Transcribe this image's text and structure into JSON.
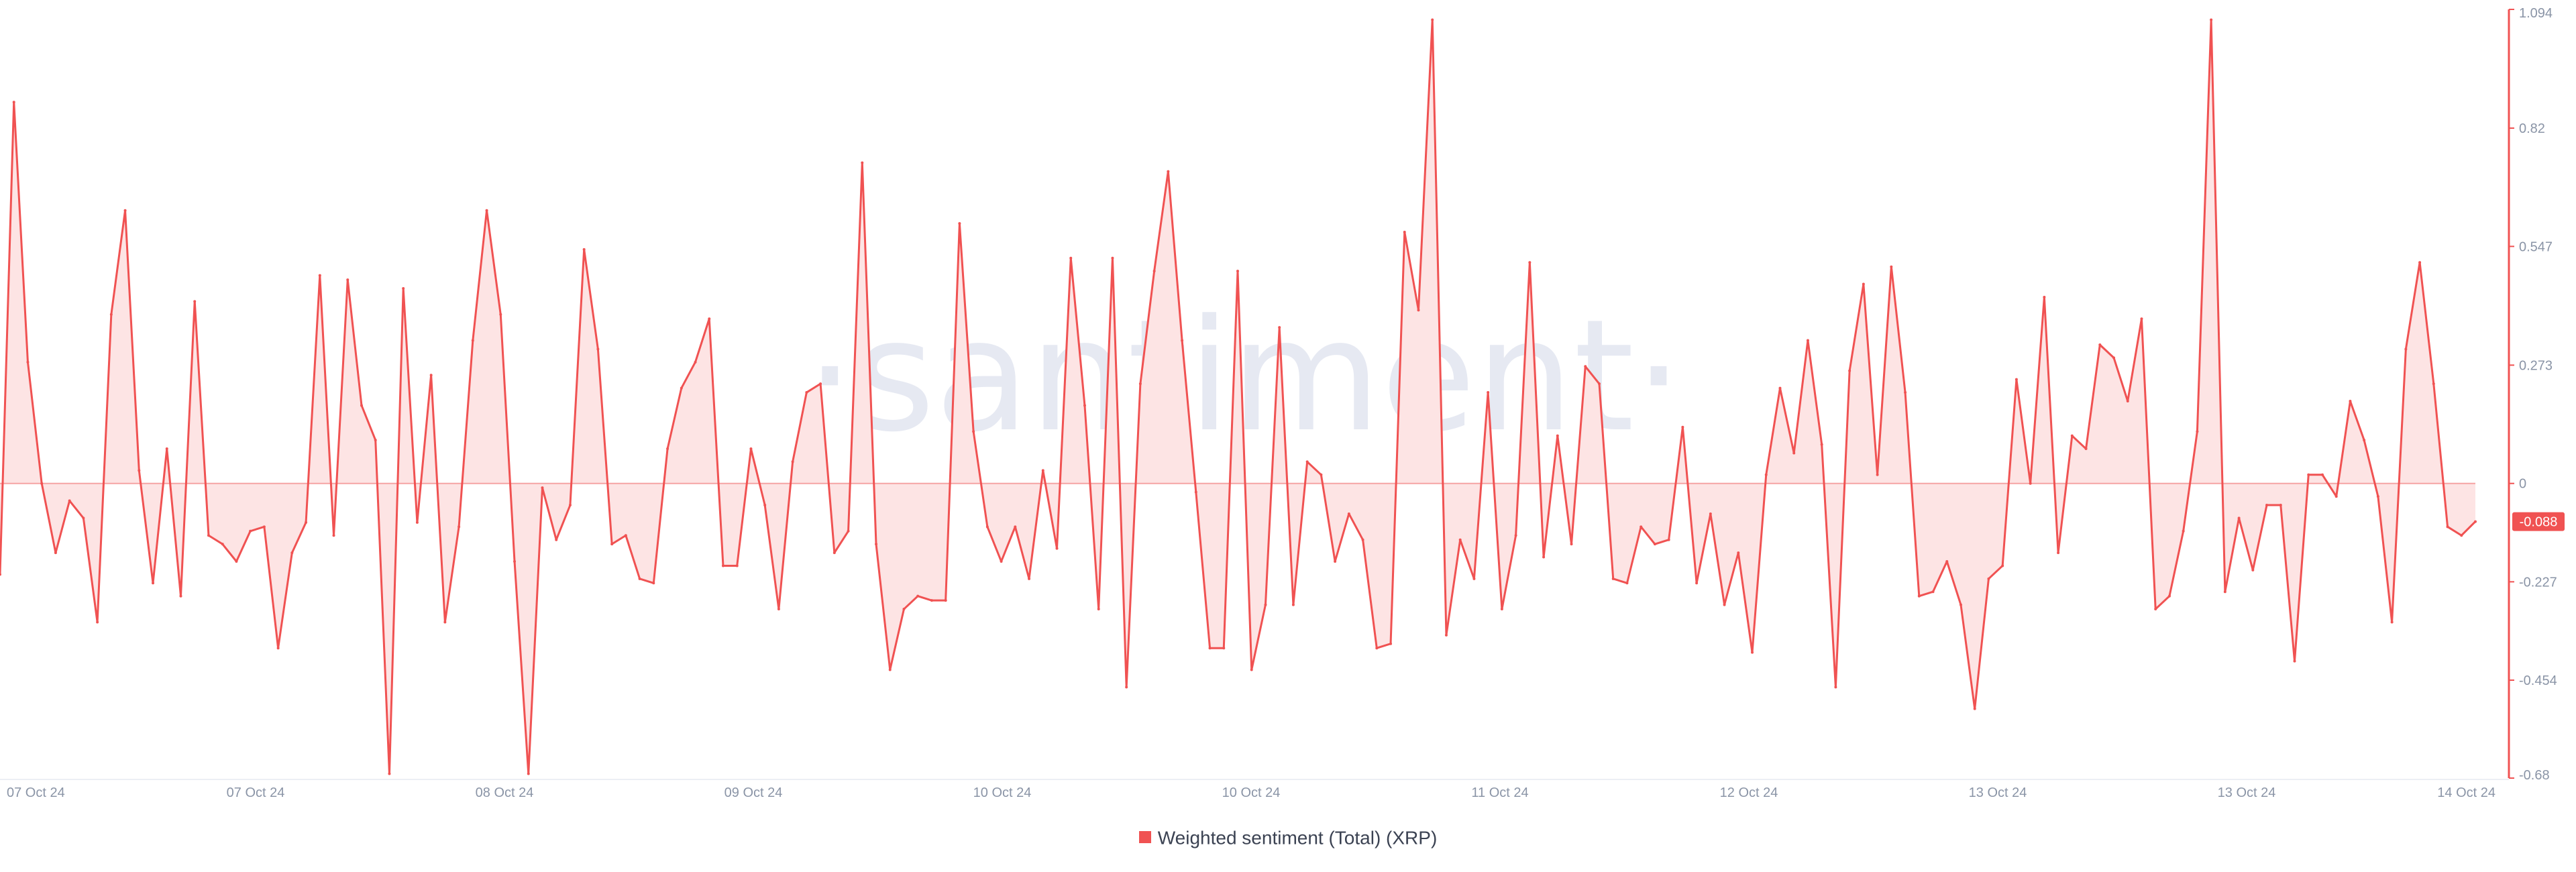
{
  "watermark": "·santiment·",
  "legend": {
    "label": "Weighted sentiment (Total) (XRP)"
  },
  "colors": {
    "line": "#f05252",
    "fill": "#fde4e4",
    "axis": "#f05252",
    "badge": "#f05252",
    "text": "#8a94a6",
    "watermark": "#e6e9f2"
  },
  "chart_data": {
    "type": "area",
    "title": "",
    "xlabel": "",
    "ylabel": "",
    "ylim": [
      -0.68,
      1.094
    ],
    "y_ticks": [
      "1.094",
      "0.82",
      "0.547",
      "0.273",
      "0",
      "-0.227",
      "-0.454",
      "-0.68"
    ],
    "y_tick_values": [
      1.094,
      0.82,
      0.547,
      0.273,
      0,
      -0.227,
      -0.454,
      -0.68
    ],
    "x_ticks": [
      "07 Oct 24",
      "07 Oct 24",
      "08 Oct 24",
      "09 Oct 24",
      "10 Oct 24",
      "10 Oct 24",
      "11 Oct 24",
      "12 Oct 24",
      "13 Oct 24",
      "13 Oct 24",
      "14 Oct 24"
    ],
    "x_range": [
      0,
      178
    ],
    "last_value_label": "-0.088",
    "grid": false,
    "legend_position": "bottom-center",
    "series": [
      {
        "name": "Weighted sentiment (Total) (XRP)",
        "values": [
          -0.21,
          0.88,
          0.28,
          0.0,
          -0.16,
          -0.04,
          -0.08,
          -0.32,
          0.39,
          0.63,
          0.03,
          -0.23,
          0.08,
          -0.26,
          0.42,
          -0.12,
          -0.14,
          -0.18,
          -0.11,
          -0.1,
          -0.38,
          -0.16,
          -0.09,
          0.48,
          -0.12,
          0.47,
          0.18,
          0.1,
          -0.67,
          0.45,
          -0.09,
          0.25,
          -0.32,
          -0.1,
          0.33,
          0.63,
          0.39,
          -0.18,
          -0.67,
          -0.01,
          -0.13,
          -0.05,
          0.54,
          0.31,
          -0.14,
          -0.12,
          -0.22,
          -0.23,
          0.08,
          0.22,
          0.28,
          0.38,
          -0.19,
          -0.19,
          0.08,
          -0.05,
          -0.29,
          0.05,
          0.21,
          0.23,
          -0.16,
          -0.11,
          0.74,
          -0.14,
          -0.43,
          -0.29,
          -0.26,
          -0.27,
          -0.27,
          0.6,
          0.12,
          -0.1,
          -0.18,
          -0.1,
          -0.22,
          0.03,
          -0.15,
          0.52,
          0.18,
          -0.29,
          0.52,
          -0.47,
          0.23,
          0.49,
          0.72,
          0.33,
          -0.02,
          -0.38,
          -0.38,
          0.49,
          -0.43,
          -0.28,
          0.36,
          -0.28,
          0.05,
          0.02,
          -0.18,
          -0.07,
          -0.13,
          -0.38,
          -0.37,
          0.58,
          0.4,
          1.07,
          -0.35,
          -0.13,
          -0.22,
          0.21,
          -0.29,
          -0.12,
          0.51,
          -0.17,
          0.11,
          -0.14,
          0.27,
          0.23,
          -0.22,
          -0.23,
          -0.1,
          -0.14,
          -0.13,
          0.13,
          -0.23,
          -0.07,
          -0.28,
          -0.16,
          -0.39,
          0.02,
          0.22,
          0.07,
          0.33,
          0.09,
          -0.47,
          0.26,
          0.46,
          0.02,
          0.5,
          0.21,
          -0.26,
          -0.25,
          -0.18,
          -0.28,
          -0.52,
          -0.22,
          -0.19,
          0.24,
          0.0,
          0.43,
          -0.16,
          0.11,
          0.08,
          0.32,
          0.29,
          0.19,
          0.38,
          -0.29,
          -0.26,
          -0.11,
          0.12,
          1.07,
          -0.25,
          -0.08,
          -0.2,
          -0.05,
          -0.05,
          -0.41,
          0.02,
          0.02,
          -0.03,
          0.19,
          0.1,
          -0.03,
          -0.32,
          0.31,
          0.51,
          0.23,
          -0.1,
          -0.12,
          -0.088
        ]
      }
    ]
  }
}
